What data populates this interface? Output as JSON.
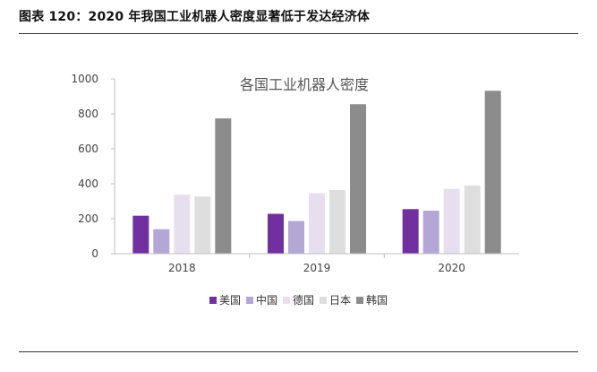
{
  "figure": {
    "title": "图表 120：2020 年我国工业机器人密度显著低于发达经济体"
  },
  "chart_data": {
    "type": "bar",
    "title": "各国工业机器人密度",
    "categories": [
      "2018",
      "2019",
      "2020"
    ],
    "ylim": [
      0,
      1000
    ],
    "yticks": [
      0,
      200,
      400,
      600,
      800,
      1000
    ],
    "grid": false,
    "legend_position": "bottom",
    "series": [
      {
        "name": "美国",
        "color": "#7030a0",
        "values": [
          217,
          228,
          255
        ]
      },
      {
        "name": "中国",
        "color": "#b4a7d6",
        "values": [
          140,
          187,
          246
        ]
      },
      {
        "name": "德国",
        "color": "#e7dfef",
        "values": [
          338,
          346,
          371
        ]
      },
      {
        "name": "日本",
        "color": "#dedede",
        "values": [
          327,
          364,
          390
        ]
      },
      {
        "name": "韩国",
        "color": "#8c8c8c",
        "values": [
          774,
          855,
          932
        ]
      }
    ]
  }
}
